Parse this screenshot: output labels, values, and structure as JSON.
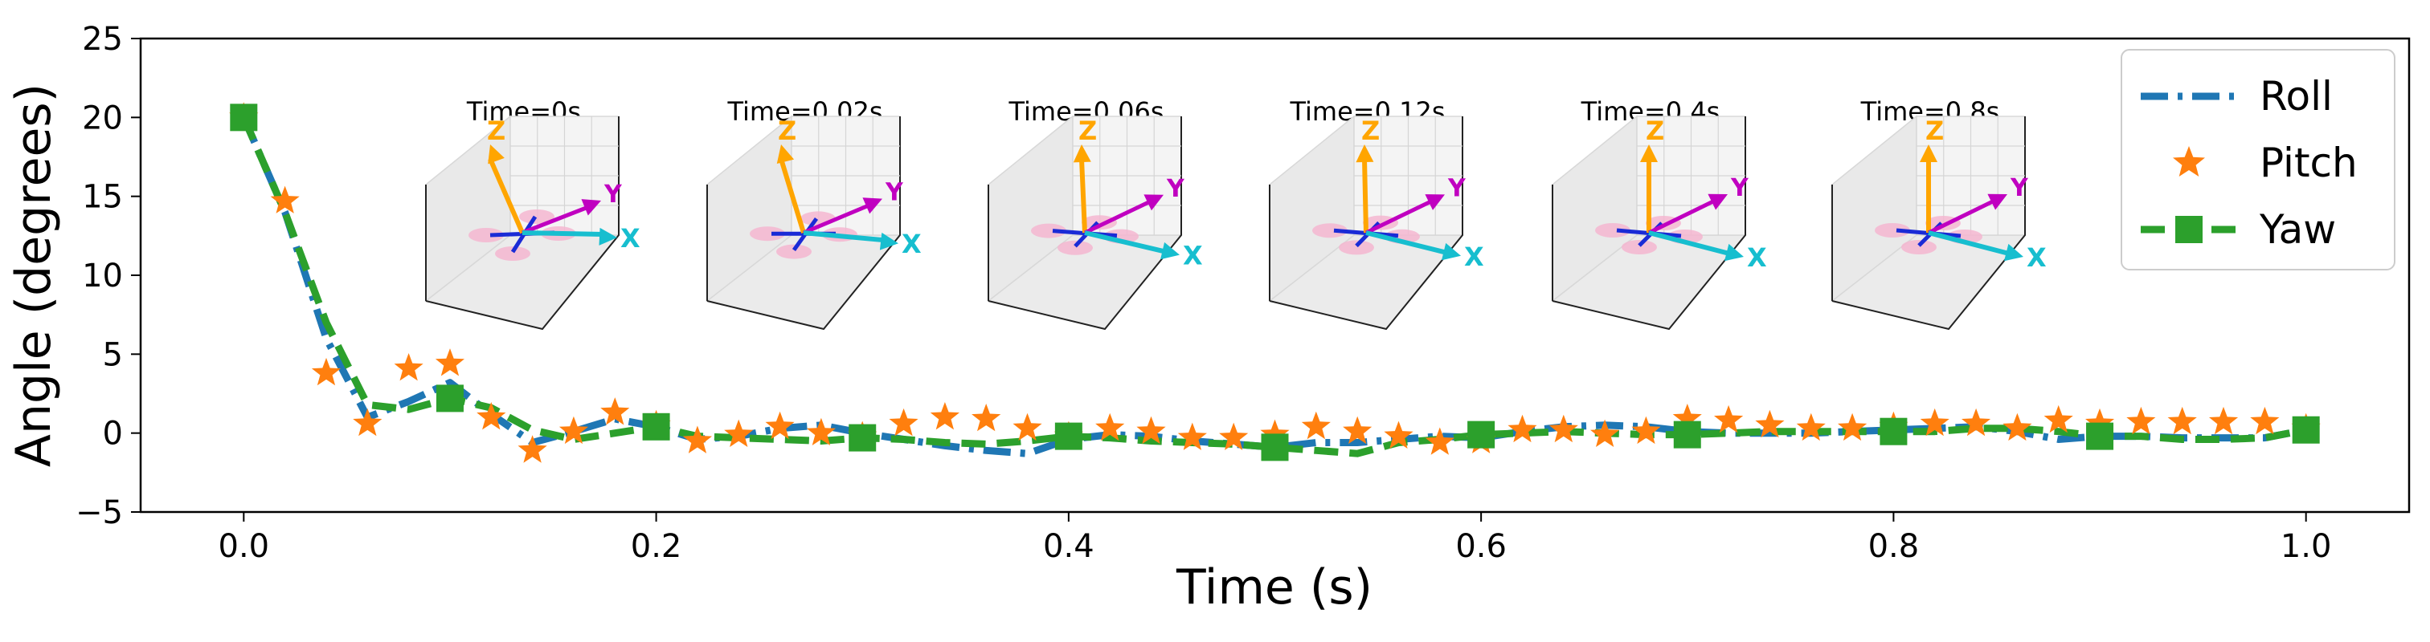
{
  "chart_data": {
    "type": "line",
    "title": "",
    "xlabel": "Time (s)",
    "ylabel": "Angle (degrees)",
    "xlim": [
      -0.05,
      1.05
    ],
    "ylim": [
      -5,
      25
    ],
    "x_ticks": [
      0.0,
      0.2,
      0.4,
      0.6,
      0.8,
      1.0
    ],
    "x_tick_labels": [
      "0.0",
      "0.2",
      "0.4",
      "0.6",
      "0.8",
      "1.0"
    ],
    "y_ticks": [
      -5,
      0,
      5,
      10,
      15,
      20,
      25
    ],
    "y_tick_labels": [
      "−5",
      "0",
      "5",
      "10",
      "15",
      "20",
      "25"
    ],
    "grid": false,
    "legend_position": "top-right",
    "series": [
      {
        "name": "Roll",
        "color": "#1f77b4",
        "style": "dash-dot line",
        "x": [
          0.0,
          0.02,
          0.04,
          0.06,
          0.08,
          0.1,
          0.12,
          0.14,
          0.16,
          0.18,
          0.2,
          0.22,
          0.24,
          0.26,
          0.28,
          0.3,
          0.32,
          0.34,
          0.36,
          0.38,
          0.4,
          0.42,
          0.44,
          0.46,
          0.48,
          0.5,
          0.52,
          0.54,
          0.56,
          0.58,
          0.6,
          0.62,
          0.64,
          0.66,
          0.68,
          0.7,
          0.72,
          0.74,
          0.76,
          0.78,
          0.8,
          0.82,
          0.84,
          0.86,
          0.88,
          0.9,
          0.92,
          0.94,
          0.96,
          0.98,
          1.0
        ],
        "y": [
          20,
          14.0,
          6.0,
          1.0,
          2.0,
          3.2,
          1.2,
          -0.6,
          0.1,
          0.9,
          0.4,
          -0.4,
          -0.2,
          0.3,
          0.5,
          0.0,
          -0.4,
          -0.8,
          -1.1,
          -1.3,
          -0.4,
          -0.1,
          -0.2,
          -0.5,
          -0.7,
          -0.9,
          -0.6,
          -0.6,
          -0.4,
          -0.2,
          -0.3,
          0.1,
          0.4,
          0.5,
          0.4,
          0.1,
          0.0,
          0.0,
          0.0,
          0.1,
          0.2,
          0.3,
          0.4,
          0.1,
          -0.4,
          -0.2,
          -0.2,
          -0.3,
          -0.3,
          -0.3,
          0.2
        ]
      },
      {
        "name": "Pitch",
        "color": "#ff7f0e",
        "style": "star markers",
        "x": [
          0.0,
          0.02,
          0.04,
          0.06,
          0.08,
          0.1,
          0.12,
          0.14,
          0.16,
          0.18,
          0.2,
          0.22,
          0.24,
          0.26,
          0.28,
          0.3,
          0.32,
          0.34,
          0.36,
          0.38,
          0.4,
          0.42,
          0.44,
          0.46,
          0.48,
          0.5,
          0.52,
          0.54,
          0.56,
          0.58,
          0.6,
          0.62,
          0.64,
          0.66,
          0.68,
          0.7,
          0.72,
          0.74,
          0.76,
          0.78,
          0.8,
          0.82,
          0.84,
          0.86,
          0.88,
          0.9,
          0.92,
          0.94,
          0.96,
          0.98,
          1.0
        ],
        "y": [
          20,
          14.7,
          3.8,
          0.6,
          4.1,
          4.4,
          1.0,
          -1.1,
          0.1,
          1.3,
          0.5,
          -0.5,
          -0.1,
          0.4,
          0.0,
          -0.2,
          0.6,
          1.0,
          0.9,
          0.3,
          -0.2,
          0.3,
          0.1,
          -0.3,
          -0.3,
          -0.1,
          0.4,
          0.1,
          -0.2,
          -0.6,
          -0.5,
          0.2,
          0.2,
          -0.1,
          0.1,
          0.9,
          0.8,
          0.5,
          0.3,
          0.3,
          0.4,
          0.6,
          0.6,
          0.3,
          0.8,
          0.6,
          0.7,
          0.7,
          0.7,
          0.7,
          0.3
        ]
      },
      {
        "name": "Yaw",
        "color": "#2ca02c",
        "style": "dashed line, square markers",
        "x": [
          0.0,
          0.02,
          0.04,
          0.06,
          0.08,
          0.1,
          0.12,
          0.14,
          0.16,
          0.18,
          0.2,
          0.22,
          0.24,
          0.26,
          0.28,
          0.3,
          0.32,
          0.34,
          0.36,
          0.38,
          0.4,
          0.42,
          0.44,
          0.46,
          0.48,
          0.5,
          0.52,
          0.54,
          0.56,
          0.58,
          0.6,
          0.62,
          0.64,
          0.66,
          0.68,
          0.7,
          0.72,
          0.74,
          0.76,
          0.78,
          0.8,
          0.82,
          0.84,
          0.86,
          0.88,
          0.9,
          0.92,
          0.94,
          0.96,
          0.98,
          1.0
        ],
        "y": [
          20,
          14.0,
          7.0,
          1.8,
          1.5,
          2.2,
          1.6,
          0.2,
          -0.4,
          0.0,
          0.4,
          -0.2,
          -0.3,
          -0.4,
          -0.5,
          -0.3,
          -0.4,
          -0.6,
          -0.7,
          -0.5,
          -0.2,
          -0.3,
          -0.5,
          -0.6,
          -0.7,
          -0.9,
          -1.1,
          -1.3,
          -0.6,
          -0.4,
          -0.1,
          0.0,
          0.1,
          0.0,
          -0.1,
          -0.1,
          0.0,
          0.1,
          0.1,
          0.1,
          0.1,
          0.1,
          0.3,
          0.3,
          0.1,
          -0.2,
          -0.2,
          -0.4,
          -0.4,
          -0.3,
          0.2
        ],
        "square_marker_x": [
          0.0,
          0.1,
          0.2,
          0.3,
          0.4,
          0.5,
          0.6,
          0.7,
          0.8,
          0.9,
          1.0
        ]
      }
    ],
    "insets": [
      {
        "title": "Time=0s",
        "x_label": "X",
        "y_label": "Y",
        "z_label": "Z",
        "x_arrow_color": "#17becf",
        "y_arrow_color": "#c000c0",
        "z_arrow_color": "#ffa500",
        "tilt": 20
      },
      {
        "title": "Time=0.02s",
        "x_label": "X",
        "y_label": "Y",
        "z_label": "Z",
        "x_arrow_color": "#17becf",
        "y_arrow_color": "#c000c0",
        "z_arrow_color": "#ffa500",
        "tilt": 14
      },
      {
        "title": "Time=0.06s",
        "x_label": "X",
        "y_label": "Y",
        "z_label": "Z",
        "x_arrow_color": "#17becf",
        "y_arrow_color": "#c000c0",
        "z_arrow_color": "#ffa500",
        "tilt": 2
      },
      {
        "title": "Time=0.12s",
        "x_label": "X",
        "y_label": "Y",
        "z_label": "Z",
        "x_arrow_color": "#17becf",
        "y_arrow_color": "#c000c0",
        "z_arrow_color": "#ffa500",
        "tilt": 1
      },
      {
        "title": "Time=0.4s",
        "x_label": "X",
        "y_label": "Y",
        "z_label": "Z",
        "x_arrow_color": "#17becf",
        "y_arrow_color": "#c000c0",
        "z_arrow_color": "#ffa500",
        "tilt": 0
      },
      {
        "title": "Time=0.8s",
        "x_label": "X",
        "y_label": "Y",
        "z_label": "Z",
        "x_arrow_color": "#17becf",
        "y_arrow_color": "#c000c0",
        "z_arrow_color": "#ffa500",
        "tilt": 0
      }
    ]
  }
}
